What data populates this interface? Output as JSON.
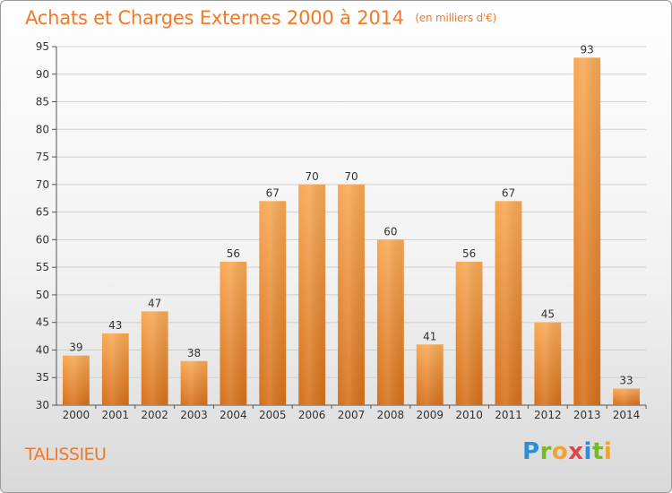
{
  "title": "Achats et Charges Externes 2000 à 2014",
  "subtitle": "(en milliers d'€)",
  "place": "TALISSIEU",
  "logo": {
    "p": "P",
    "r": "r",
    "o": "o",
    "x": "x",
    "i1": "i",
    "t": "t",
    "i2": "i"
  },
  "colors": {
    "title": "#f07a2a",
    "bar_top": "#f7a654",
    "bar_bottom": "#d9731c",
    "grid": "#cfcfcf"
  },
  "chart_data": {
    "type": "bar",
    "title": "Achats et Charges Externes 2000 à 2014",
    "subtitle": "(en milliers d'€)",
    "categories": [
      "2000",
      "2001",
      "2002",
      "2003",
      "2004",
      "2005",
      "2006",
      "2007",
      "2008",
      "2009",
      "2010",
      "2011",
      "2012",
      "2013",
      "2014"
    ],
    "values": [
      39,
      43,
      47,
      38,
      56,
      67,
      70,
      70,
      60,
      41,
      56,
      67,
      45,
      93,
      33
    ],
    "value_labels": [
      "39",
      "43",
      "47",
      "38",
      "56",
      "67",
      "70",
      "70",
      "60",
      "41",
      "56",
      "67",
      "45",
      "93",
      "33"
    ],
    "yticks": [
      "30",
      "35",
      "40",
      "45",
      "50",
      "55",
      "60",
      "65",
      "70",
      "75",
      "80",
      "85",
      "90",
      "95"
    ],
    "ylim": [
      30,
      95
    ],
    "xlabel": "",
    "ylabel": "",
    "grid": true,
    "legend": "none"
  }
}
